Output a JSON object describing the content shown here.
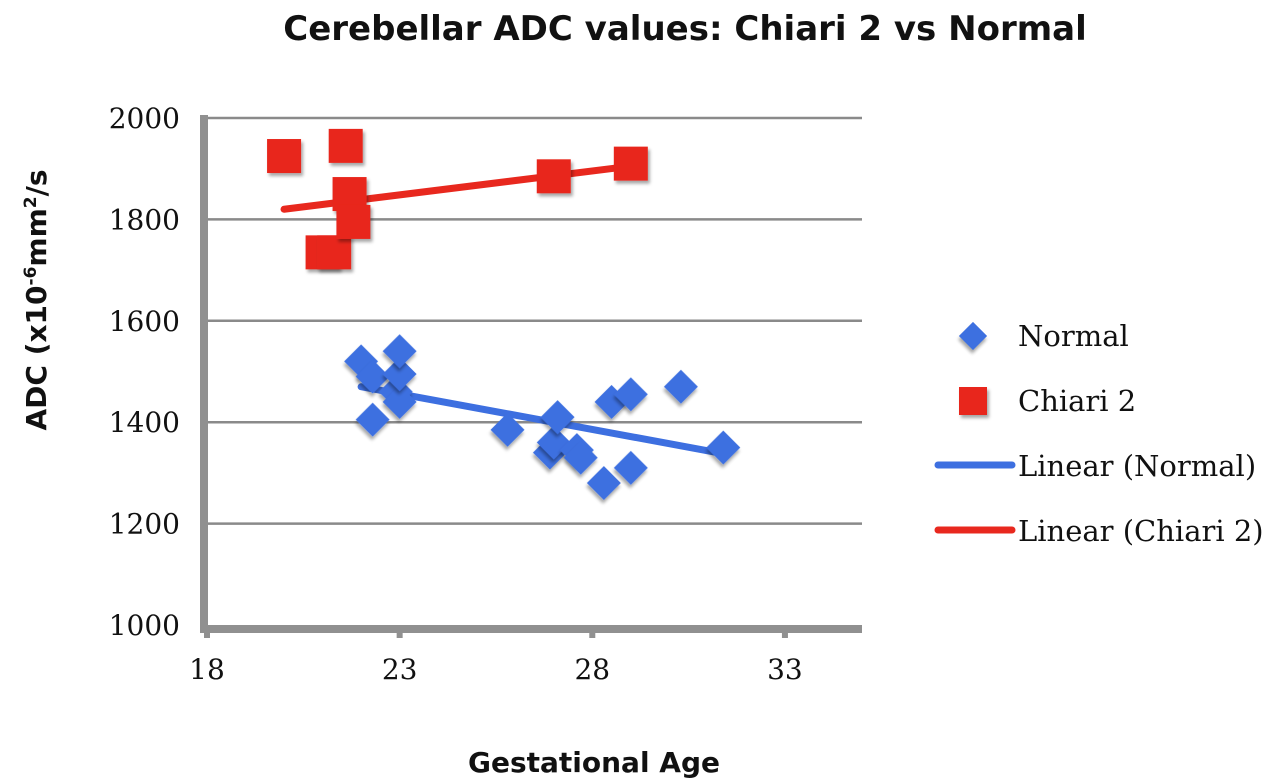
{
  "chart_data": {
    "type": "scatter",
    "title": "Cerebellar ADC values: Chiari 2 vs Normal",
    "xlabel": "Gestational Age",
    "ylabel_main": "ADC (x10",
    "ylabel_exp1": "-6",
    "ylabel_mid": "mm",
    "ylabel_exp2": "2",
    "ylabel_tail": "/s",
    "xlim": [
      18,
      35
    ],
    "ylim": [
      1000,
      2000
    ],
    "xticks": [
      18,
      23,
      28,
      33
    ],
    "yticks": [
      1000,
      1200,
      1400,
      1600,
      1800,
      2000
    ],
    "grid": "horizontal",
    "legend_position": "right",
    "series": [
      {
        "name": "Normal",
        "marker": "diamond",
        "color": "#3d6fe0",
        "points": [
          [
            22.0,
            1520
          ],
          [
            22.3,
            1490
          ],
          [
            22.3,
            1405
          ],
          [
            22.9,
            1460
          ],
          [
            23.0,
            1440
          ],
          [
            23.0,
            1495
          ],
          [
            23.0,
            1540
          ],
          [
            25.8,
            1385
          ],
          [
            26.9,
            1340
          ],
          [
            27.0,
            1360
          ],
          [
            27.1,
            1410
          ],
          [
            27.6,
            1345
          ],
          [
            27.7,
            1330
          ],
          [
            28.3,
            1280
          ],
          [
            28.5,
            1440
          ],
          [
            29.0,
            1455
          ],
          [
            29.0,
            1310
          ],
          [
            30.3,
            1470
          ],
          [
            31.4,
            1350
          ]
        ]
      },
      {
        "name": "Chiari 2",
        "marker": "square",
        "color": "#e8281e",
        "points": [
          [
            20.0,
            1925
          ],
          [
            21.0,
            1735
          ],
          [
            21.3,
            1735
          ],
          [
            21.6,
            1945
          ],
          [
            21.7,
            1850
          ],
          [
            21.8,
            1795
          ],
          [
            27.0,
            1885
          ],
          [
            29.0,
            1910
          ]
        ]
      }
    ],
    "trendlines": [
      {
        "name": "Linear (Normal)",
        "color": "#3d6fe0",
        "x": [
          22.0,
          31.4
        ],
        "y": [
          1470,
          1338
        ]
      },
      {
        "name": "Linear (Chiari 2)",
        "color": "#e8281e",
        "x": [
          20.0,
          29.0
        ],
        "y": [
          1820,
          1905
        ]
      }
    ],
    "legend": [
      "Normal",
      "Chiari 2",
      "Linear (Normal)",
      "Linear (Chiari 2)"
    ]
  }
}
